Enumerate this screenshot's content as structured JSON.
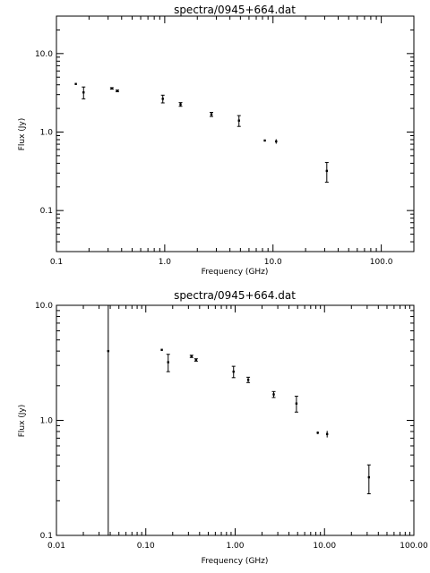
{
  "chart_data": [
    {
      "type": "scatter",
      "title": "spectra/0945+664.dat",
      "xlabel": "Frequency (GHz)",
      "ylabel": "Flux (Jy)",
      "xscale": "log",
      "yscale": "log",
      "xlim": [
        0.1,
        200
      ],
      "ylim": [
        0.03,
        30
      ],
      "xticks": [
        {
          "value": 0.1,
          "label": "0.1"
        },
        {
          "value": 1,
          "label": "1.0"
        },
        {
          "value": 10,
          "label": "10.0"
        },
        {
          "value": 100,
          "label": "100.0"
        }
      ],
      "yticks": [
        {
          "value": 0.1,
          "label": "0.1"
        },
        {
          "value": 1,
          "label": "1.0"
        },
        {
          "value": 10,
          "label": "10.0"
        }
      ],
      "grid": false,
      "points": [
        {
          "x": 0.151,
          "y": 4.1,
          "err": 0.05
        },
        {
          "x": 0.178,
          "y": 3.2,
          "err": 0.55
        },
        {
          "x": 0.325,
          "y": 3.6,
          "err": 0.08
        },
        {
          "x": 0.365,
          "y": 3.35,
          "err": 0.08
        },
        {
          "x": 0.96,
          "y": 2.65,
          "err": 0.3
        },
        {
          "x": 1.4,
          "y": 2.25,
          "err": 0.12
        },
        {
          "x": 2.7,
          "y": 1.68,
          "err": 0.1
        },
        {
          "x": 4.85,
          "y": 1.4,
          "err": 0.22
        },
        {
          "x": 8.4,
          "y": 0.78,
          "err": 0.02
        },
        {
          "x": 10.7,
          "y": 0.76,
          "err": 0.05
        },
        {
          "x": 31.4,
          "y": 0.32,
          "err": 0.09
        }
      ]
    },
    {
      "type": "scatter",
      "title": "spectra/0945+664.dat",
      "xlabel": "Frequency (GHz)",
      "ylabel": "Flux (Jy)",
      "xscale": "log",
      "yscale": "log",
      "xlim": [
        0.01,
        100
      ],
      "ylim": [
        0.1,
        10
      ],
      "xticks": [
        {
          "value": 0.01,
          "label": "0.01"
        },
        {
          "value": 0.1,
          "label": "0.10"
        },
        {
          "value": 1,
          "label": "1.00"
        },
        {
          "value": 10,
          "label": "10.00"
        },
        {
          "value": 100,
          "label": "100.00"
        }
      ],
      "yticks": [
        {
          "value": 0.1,
          "label": "0.1"
        },
        {
          "value": 1,
          "label": "1.0"
        },
        {
          "value": 10,
          "label": "10.0"
        }
      ],
      "grid": false,
      "points": [
        {
          "x": 0.038,
          "y": 4.0,
          "err": 20
        },
        {
          "x": 0.151,
          "y": 4.1,
          "err": 0.05
        },
        {
          "x": 0.178,
          "y": 3.2,
          "err": 0.55
        },
        {
          "x": 0.325,
          "y": 3.6,
          "err": 0.08
        },
        {
          "x": 0.365,
          "y": 3.35,
          "err": 0.08
        },
        {
          "x": 0.96,
          "y": 2.65,
          "err": 0.3
        },
        {
          "x": 1.4,
          "y": 2.25,
          "err": 0.12
        },
        {
          "x": 2.7,
          "y": 1.68,
          "err": 0.1
        },
        {
          "x": 4.85,
          "y": 1.4,
          "err": 0.22
        },
        {
          "x": 8.4,
          "y": 0.78,
          "err": 0.02
        },
        {
          "x": 10.7,
          "y": 0.76,
          "err": 0.05
        },
        {
          "x": 31.4,
          "y": 0.32,
          "err": 0.09
        }
      ]
    }
  ]
}
